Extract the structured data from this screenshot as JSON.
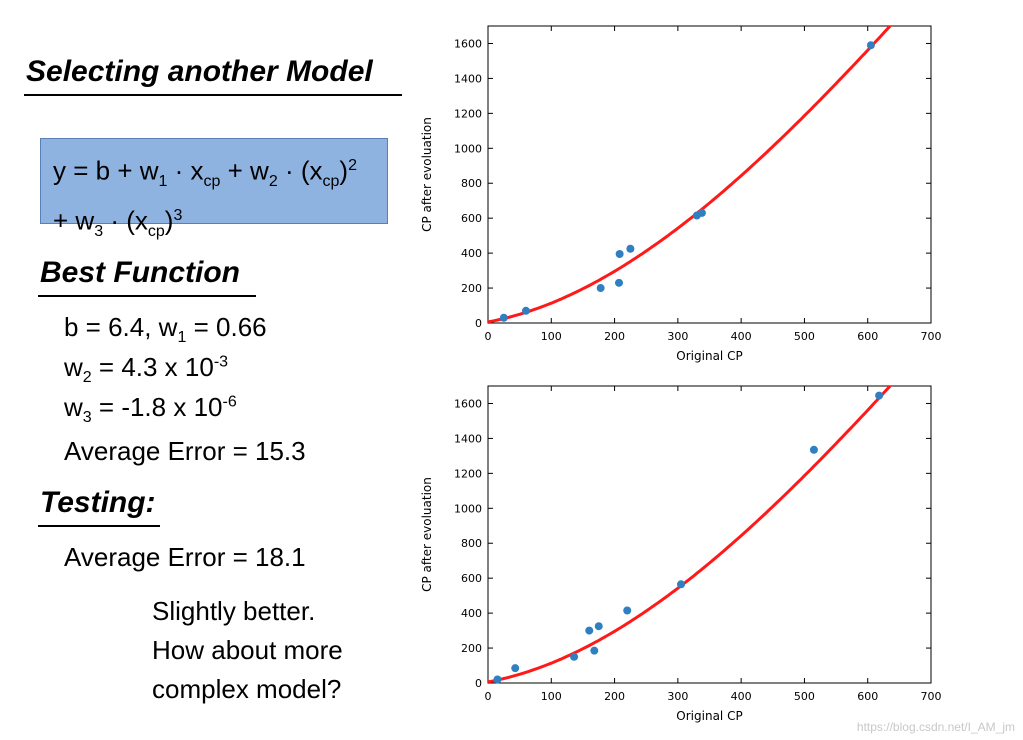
{
  "slide": {
    "title": "Selecting another Model",
    "equation": {
      "y": "y = b + w",
      "s1": "1",
      "p1": " · x",
      "s2": "cp",
      "p2": " + w",
      "s3": "2",
      "p3": " · (x",
      "s4": "cp",
      "p4": ")",
      "sup1": "2",
      "l2a": "+ w",
      "s5": "3",
      "l2b": " · (x",
      "s6": "cp",
      "l2c": ")",
      "sup2": "3"
    },
    "best_function": {
      "title": "Best Function",
      "b_line_a": "b = 6.4, w",
      "b_line_sub": "1",
      "b_line_b": " = 0.66",
      "w2_a": "w",
      "w2_sub": "2",
      "w2_b": " = 4.3 x 10",
      "w2_sup": "-3",
      "w3_a": "w",
      "w3_sub": "3",
      "w3_b": " = -1.8 x 10",
      "w3_sup": "-6",
      "avg_error": "Average Error = 15.3"
    },
    "testing": {
      "title": "Testing:",
      "avg_error": "Average Error = 18.1"
    },
    "note": {
      "line1": "Slightly better.",
      "line2": "How about more",
      "line3": "complex model?"
    },
    "watermark": "https://blog.csdn.net/I_AM_jm"
  },
  "chart_data": [
    {
      "type": "scatter",
      "title": "",
      "xlabel": "Original CP",
      "ylabel": "CP after evoluation",
      "xlim": [
        0,
        700
      ],
      "ylim": [
        0,
        1700
      ],
      "xticks": [
        0,
        100,
        200,
        300,
        400,
        500,
        600,
        700
      ],
      "yticks": [
        0,
        200,
        400,
        600,
        800,
        1000,
        1200,
        1400,
        1600
      ],
      "points": [
        [
          25,
          30
        ],
        [
          60,
          70
        ],
        [
          178,
          200
        ],
        [
          207,
          230
        ],
        [
          208,
          395
        ],
        [
          225,
          425
        ],
        [
          330,
          615
        ],
        [
          338,
          630
        ],
        [
          605,
          1590
        ]
      ],
      "curve": {
        "b": 6.4,
        "w1": 0.66,
        "w2": 0.0043,
        "w3": -1.8e-06,
        "color": "#ff1a1a"
      },
      "point_color": "#2f7fc1"
    },
    {
      "type": "scatter",
      "title": "",
      "xlabel": "Original CP",
      "ylabel": "CP after evoluation",
      "xlim": [
        0,
        700
      ],
      "ylim": [
        0,
        1700
      ],
      "xticks": [
        0,
        100,
        200,
        300,
        400,
        500,
        600,
        700
      ],
      "yticks": [
        0,
        200,
        400,
        600,
        800,
        1000,
        1200,
        1400,
        1600
      ],
      "points": [
        [
          15,
          20
        ],
        [
          43,
          85
        ],
        [
          136,
          150
        ],
        [
          160,
          300
        ],
        [
          168,
          185
        ],
        [
          175,
          325
        ],
        [
          220,
          415
        ],
        [
          305,
          565
        ],
        [
          515,
          1335
        ],
        [
          618,
          1645
        ]
      ],
      "curve": {
        "b": 6.4,
        "w1": 0.66,
        "w2": 0.0043,
        "w3": -1.8e-06,
        "color": "#ff1a1a"
      },
      "point_color": "#2f7fc1"
    }
  ]
}
